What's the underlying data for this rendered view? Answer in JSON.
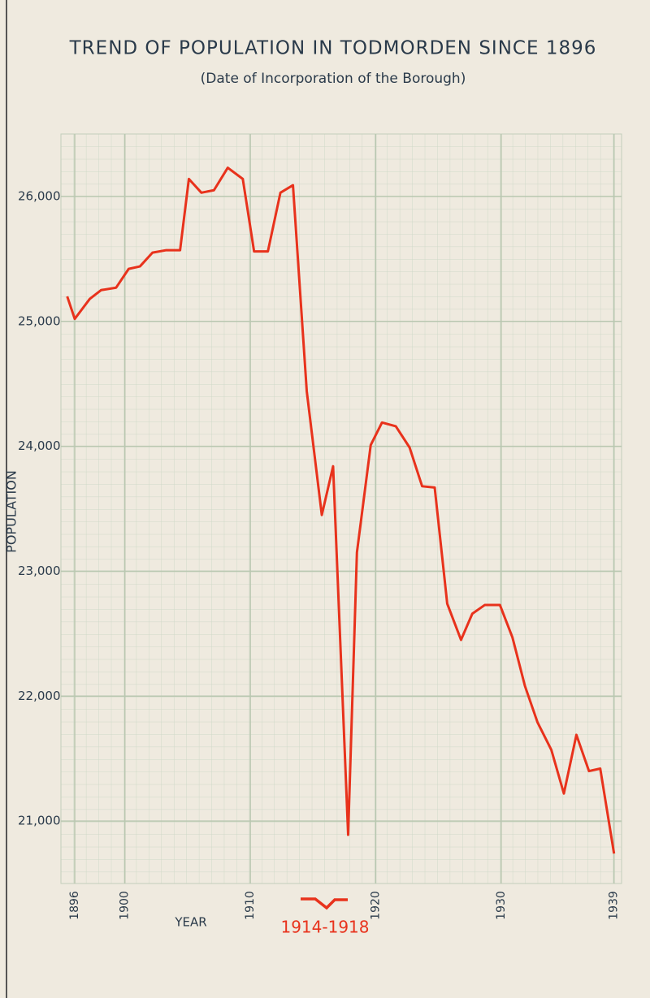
{
  "chart_data": {
    "type": "line",
    "title": "TREND OF POPULATION IN TODMORDEN SINCE 1896",
    "subtitle": "(Date of Incorporation of the Borough)",
    "y_label": "POPULATION",
    "x_label": "YEAR",
    "annotation": "1914-1918",
    "x": [
      1895.4,
      1896.0,
      1897.2,
      1898.1,
      1899.3,
      1900.3,
      1901.2,
      1902.2,
      1903.3,
      1904.4,
      1905.1,
      1906.1,
      1907.1,
      1908.2,
      1909.4,
      1910.3,
      1911.4,
      1912.4,
      1913.4,
      1914.5,
      1915.7,
      1916.6,
      1917.8,
      1918.5,
      1919.6,
      1920.5,
      1921.6,
      1922.7,
      1923.7,
      1924.7,
      1925.7,
      1926.8,
      1927.7,
      1928.7,
      1929.9,
      1930.9,
      1931.9,
      1932.9,
      1934.0,
      1935.0,
      1936.0,
      1937.0,
      1937.9,
      1939.0
    ],
    "series": [
      {
        "color": "#e8321c",
        "values": [
          25200,
          25020,
          25180,
          25250,
          25270,
          25420,
          25440,
          25550,
          25570,
          25570,
          26140,
          26030,
          26050,
          26230,
          26140,
          25560,
          25560,
          26030,
          26090,
          24440,
          23450,
          23840,
          20890,
          23150,
          24010,
          24190,
          24160,
          23990,
          23680,
          23670,
          22740,
          22450,
          22660,
          22730,
          22730,
          22470,
          22080,
          21790,
          21570,
          21220,
          21690,
          21400,
          21420,
          20740
        ]
      }
    ],
    "xlim": [
      1894.9,
      1939.6
    ],
    "ylim": [
      20500,
      26500
    ],
    "xticks": [
      1896,
      1900,
      1910,
      1920,
      1930,
      1939
    ],
    "yticks": [
      {
        "value": 21000,
        "label": "21,000"
      },
      {
        "value": 22000,
        "label": "22,000"
      },
      {
        "value": 23000,
        "label": "23,000"
      },
      {
        "value": 24000,
        "label": "24,000"
      },
      {
        "value": 25000,
        "label": "25,000"
      },
      {
        "value": 26000,
        "label": "26,000"
      }
    ],
    "grid": true
  }
}
